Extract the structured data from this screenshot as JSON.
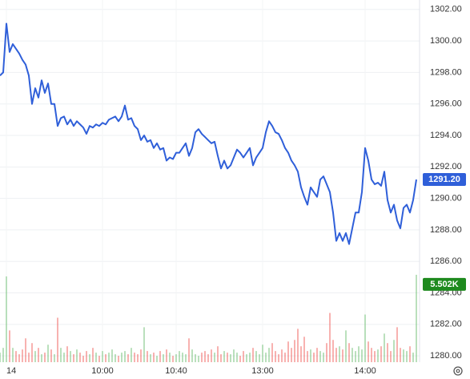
{
  "chart_data": {
    "type": "line",
    "x": [
      0,
      1,
      2,
      3,
      4,
      5,
      6,
      7,
      8,
      9,
      10,
      11,
      12,
      13,
      14,
      15,
      16,
      17,
      18,
      19,
      20,
      21,
      22,
      23,
      24,
      25,
      26,
      27,
      28,
      29,
      30,
      31,
      32,
      33,
      34,
      35,
      36,
      37,
      38,
      39,
      40,
      41,
      42,
      43,
      44,
      45,
      46,
      47,
      48,
      49,
      50,
      51,
      52,
      53,
      54,
      55,
      56,
      57,
      58,
      59,
      60,
      61,
      62,
      63,
      64,
      65,
      66,
      67,
      68,
      69,
      70,
      71,
      72,
      73,
      74,
      75,
      76,
      77,
      78,
      79,
      80,
      81,
      82,
      83,
      84,
      85,
      86,
      87,
      88,
      89,
      90,
      91,
      92,
      93,
      94,
      95,
      96,
      97,
      98,
      99,
      100,
      101,
      102,
      103,
      104,
      105,
      106,
      107,
      108,
      109,
      110,
      111,
      112,
      113,
      114,
      115,
      116,
      117,
      118,
      119,
      120,
      121,
      122,
      123,
      124,
      125,
      126,
      127,
      128,
      129,
      130
    ],
    "series": [
      {
        "color": "#2f5fd9",
        "values": [
          1297.8,
          1298.0,
          1301.1,
          1299.3,
          1299.8,
          1299.5,
          1299.2,
          1298.8,
          1298.5,
          1297.8,
          1296.0,
          1297.0,
          1296.4,
          1297.5,
          1296.7,
          1297.3,
          1296.0,
          1296.0,
          1294.6,
          1295.1,
          1295.2,
          1294.7,
          1295.0,
          1294.6,
          1294.9,
          1294.7,
          1294.5,
          1294.1,
          1294.6,
          1294.5,
          1294.7,
          1294.6,
          1294.8,
          1294.7,
          1295.0,
          1295.1,
          1295.2,
          1294.9,
          1295.2,
          1295.9,
          1295.0,
          1295.1,
          1294.6,
          1294.4,
          1293.7,
          1294.0,
          1293.6,
          1293.7,
          1293.2,
          1293.5,
          1293.1,
          1293.2,
          1292.4,
          1292.6,
          1292.5,
          1292.9,
          1292.9,
          1293.2,
          1293.5,
          1292.7,
          1293.2,
          1294.2,
          1294.4,
          1294.1,
          1293.9,
          1293.7,
          1293.5,
          1293.6,
          1292.7,
          1291.9,
          1292.4,
          1291.9,
          1292.1,
          1292.6,
          1293.1,
          1292.9,
          1292.6,
          1292.9,
          1293.2,
          1292.1,
          1292.6,
          1292.9,
          1293.2,
          1294.2,
          1294.9,
          1294.6,
          1294.2,
          1294.1,
          1293.7,
          1293.2,
          1292.9,
          1292.4,
          1292.1,
          1291.7,
          1290.7,
          1290.1,
          1289.6,
          1290.7,
          1290.4,
          1290.1,
          1291.2,
          1291.4,
          1290.9,
          1290.4,
          1289.1,
          1287.3,
          1287.8,
          1287.3,
          1287.8,
          1287.1,
          1288.1,
          1289.1,
          1289.1,
          1290.4,
          1293.2,
          1292.4,
          1291.2,
          1290.9,
          1291.0,
          1290.8,
          1291.7,
          1289.9,
          1289.1,
          1289.6,
          1288.6,
          1288.1,
          1289.4,
          1289.6,
          1289.1,
          1289.9,
          1291.2
        ]
      },
      {
        "axis": "y2",
        "up_color": "#66bb6a",
        "down_color": "#ef5350",
        "values": [
          600,
          900,
          5400,
          2000,
          900,
          700,
          500,
          800,
          1500,
          600,
          1200,
          700,
          900,
          500,
          600,
          1100,
          800,
          500,
          2800,
          900,
          600,
          1000,
          700,
          500,
          800,
          600,
          400,
          700,
          500,
          900,
          600,
          400,
          700,
          500,
          600,
          800,
          500,
          400,
          600,
          700,
          500,
          900,
          600,
          500,
          800,
          2200,
          700,
          500,
          600,
          400,
          700,
          500,
          800,
          600,
          400,
          500,
          700,
          600,
          500,
          1500,
          800,
          500,
          400,
          600,
          700,
          500,
          800,
          600,
          1000,
          500,
          700,
          600,
          500,
          800,
          600,
          400,
          700,
          500,
          600,
          900,
          700,
          500,
          1100,
          600,
          900,
          1200,
          700,
          500,
          800,
          600,
          1300,
          900,
          1400,
          2100,
          1000,
          1600,
          700,
          800,
          600,
          900,
          700,
          600,
          1200,
          3100,
          1400,
          900,
          1000,
          800,
          2000,
          1200,
          900,
          700,
          1000,
          800,
          3000,
          1300,
          900,
          700,
          800,
          1000,
          1800,
          1200,
          700,
          1400,
          2200,
          900,
          800,
          700,
          1000,
          600,
          5502
        ]
      }
    ],
    "xlim": [
      0,
      131
    ],
    "xticks": [
      {
        "value": 2,
        "label": "14"
      },
      {
        "value": 32,
        "label": "10:00"
      },
      {
        "value": 55,
        "label": "10:40"
      },
      {
        "value": 82,
        "label": "13:00"
      },
      {
        "value": 114,
        "label": "14:00"
      }
    ],
    "ylim": [
      1279.6,
      1302.6
    ],
    "yticks": [
      {
        "value": 1280,
        "label": "1280.00"
      },
      {
        "value": 1282,
        "label": "1282.00"
      },
      {
        "value": 1284,
        "label": "1284.00"
      },
      {
        "value": 1286,
        "label": "1286.00"
      },
      {
        "value": 1288,
        "label": "1288.00"
      },
      {
        "value": 1290,
        "label": "1290.00"
      },
      {
        "value": 1292,
        "label": "1292.00"
      },
      {
        "value": 1294,
        "label": "1294.00"
      },
      {
        "value": 1296,
        "label": "1296.00"
      },
      {
        "value": 1298,
        "label": "1298.00"
      },
      {
        "value": 1300,
        "label": "1300.00"
      },
      {
        "value": 1302,
        "label": "1302.00"
      }
    ],
    "y2lim": [
      0,
      22800
    ],
    "last_price": {
      "value": 1291.2,
      "label": "1291.20",
      "color": "#2f5fd9"
    },
    "last_volume": {
      "value": 5502,
      "label": "5.502K",
      "color": "#1e8a1e"
    },
    "grid": true
  }
}
